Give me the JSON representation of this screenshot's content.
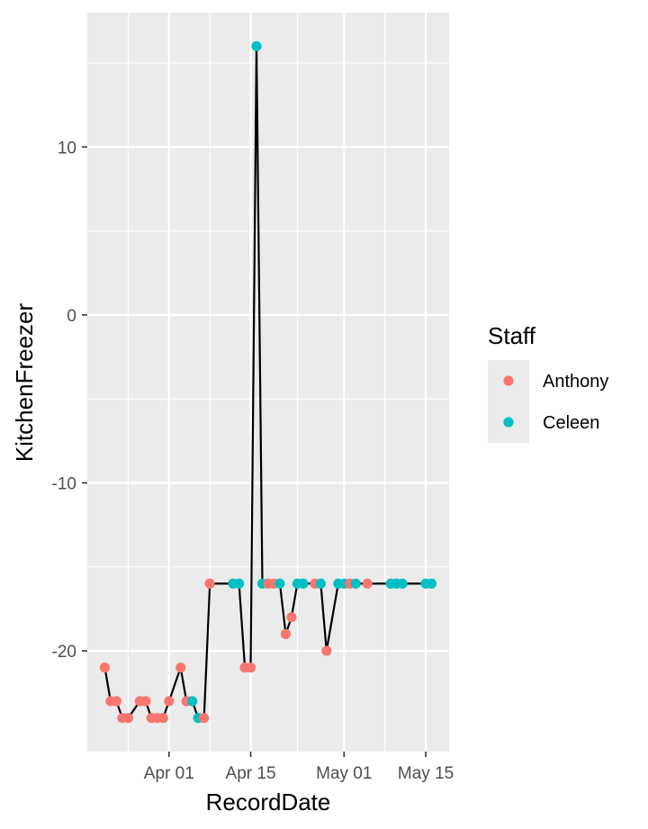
{
  "chart_data": {
    "type": "line",
    "title": "",
    "xlabel": "RecordDate",
    "ylabel": "KitchenFreezer",
    "x_ticks": [
      {
        "date": "2025-04-01",
        "label": "Apr 01"
      },
      {
        "date": "2025-04-15",
        "label": "Apr 15"
      },
      {
        "date": "2025-05-01",
        "label": "May 01"
      },
      {
        "date": "2025-05-15",
        "label": "May 15"
      }
    ],
    "y_ticks": [
      10,
      0,
      -10,
      -20
    ],
    "xlim": [
      "2025-03-18",
      "2025-05-19"
    ],
    "ylim": [
      -26,
      18
    ],
    "grid": true,
    "legend": {
      "title": "Staff",
      "placement": "right",
      "entries": [
        {
          "name": "Anthony",
          "color": "#F8766D"
        },
        {
          "name": "Celeen",
          "color": "#00BFC4"
        }
      ]
    },
    "line_color": "#000000",
    "points": [
      {
        "x": "2025-03-21",
        "y": -21,
        "staff": "Anthony"
      },
      {
        "x": "2025-03-22",
        "y": -23,
        "staff": "Anthony"
      },
      {
        "x": "2025-03-23",
        "y": -23,
        "staff": "Anthony"
      },
      {
        "x": "2025-03-24",
        "y": -24,
        "staff": "Anthony"
      },
      {
        "x": "2025-03-25",
        "y": -24,
        "staff": "Anthony"
      },
      {
        "x": "2025-03-27",
        "y": -23,
        "staff": "Anthony"
      },
      {
        "x": "2025-03-28",
        "y": -23,
        "staff": "Anthony"
      },
      {
        "x": "2025-03-29",
        "y": -24,
        "staff": "Anthony"
      },
      {
        "x": "2025-03-30",
        "y": -24,
        "staff": "Anthony"
      },
      {
        "x": "2025-03-31",
        "y": -24,
        "staff": "Anthony"
      },
      {
        "x": "2025-04-01",
        "y": -23,
        "staff": "Anthony"
      },
      {
        "x": "2025-04-03",
        "y": -21,
        "staff": "Anthony"
      },
      {
        "x": "2025-04-04",
        "y": -23,
        "staff": "Anthony"
      },
      {
        "x": "2025-04-05",
        "y": -23,
        "staff": "Celeen"
      },
      {
        "x": "2025-04-06",
        "y": -24,
        "staff": "Celeen"
      },
      {
        "x": "2025-04-07",
        "y": -24,
        "staff": "Anthony"
      },
      {
        "x": "2025-04-08",
        "y": -16,
        "staff": "Anthony"
      },
      {
        "x": "2025-04-12",
        "y": -16,
        "staff": "Celeen"
      },
      {
        "x": "2025-04-13",
        "y": -16,
        "staff": "Celeen"
      },
      {
        "x": "2025-04-14",
        "y": -21,
        "staff": "Anthony"
      },
      {
        "x": "2025-04-15",
        "y": -21,
        "staff": "Anthony"
      },
      {
        "x": "2025-04-16",
        "y": 16,
        "staff": "Celeen"
      },
      {
        "x": "2025-04-17",
        "y": -16,
        "staff": "Celeen"
      },
      {
        "x": "2025-04-18",
        "y": -16,
        "staff": "Anthony"
      },
      {
        "x": "2025-04-19",
        "y": -16,
        "staff": "Anthony"
      },
      {
        "x": "2025-04-20",
        "y": -16,
        "staff": "Celeen"
      },
      {
        "x": "2025-04-21",
        "y": -19,
        "staff": "Anthony"
      },
      {
        "x": "2025-04-22",
        "y": -18,
        "staff": "Anthony"
      },
      {
        "x": "2025-04-23",
        "y": -16,
        "staff": "Celeen"
      },
      {
        "x": "2025-04-24",
        "y": -16,
        "staff": "Celeen"
      },
      {
        "x": "2025-04-26",
        "y": -16,
        "staff": "Anthony"
      },
      {
        "x": "2025-04-27",
        "y": -16,
        "staff": "Celeen"
      },
      {
        "x": "2025-04-28",
        "y": -20,
        "staff": "Anthony"
      },
      {
        "x": "2025-04-30",
        "y": -16,
        "staff": "Celeen"
      },
      {
        "x": "2025-05-01",
        "y": -16,
        "staff": "Celeen"
      },
      {
        "x": "2025-05-02",
        "y": -16,
        "staff": "Anthony"
      },
      {
        "x": "2025-05-03",
        "y": -16,
        "staff": "Celeen"
      },
      {
        "x": "2025-05-05",
        "y": -16,
        "staff": "Anthony"
      },
      {
        "x": "2025-05-09",
        "y": -16,
        "staff": "Celeen"
      },
      {
        "x": "2025-05-10",
        "y": -16,
        "staff": "Celeen"
      },
      {
        "x": "2025-05-11",
        "y": -16,
        "staff": "Celeen"
      },
      {
        "x": "2025-05-15",
        "y": -16,
        "staff": "Celeen"
      },
      {
        "x": "2025-05-16",
        "y": -16,
        "staff": "Celeen"
      }
    ]
  }
}
